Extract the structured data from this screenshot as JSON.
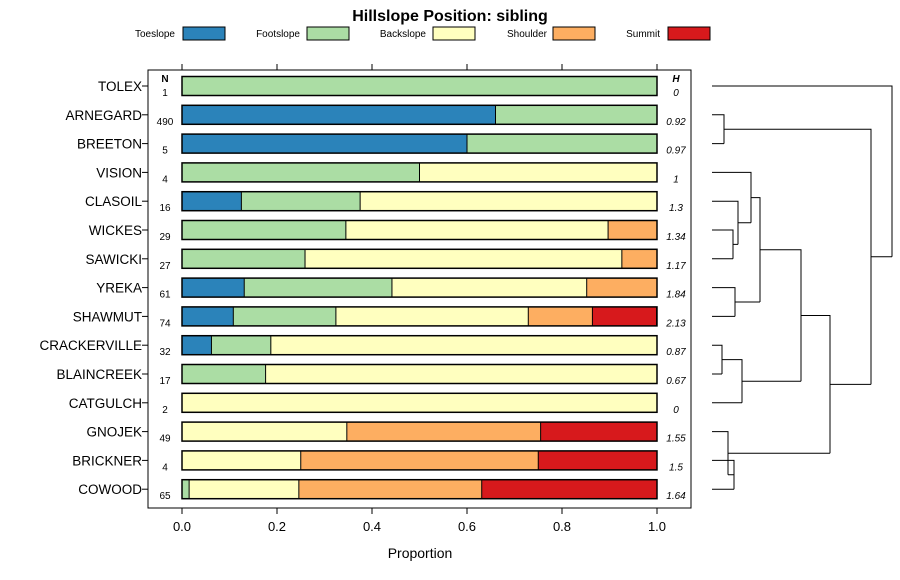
{
  "chart_data": {
    "type": "stacked-bar",
    "title": "Hillslope Position: sibling",
    "xlabel": "Proportion",
    "xlim": [
      0,
      1
    ],
    "x_ticks": [
      "0.0",
      "0.2",
      "0.4",
      "0.6",
      "0.8",
      "1.0"
    ],
    "n_header": "N",
    "h_header": "H",
    "legend": [
      {
        "name": "Toeslope",
        "color": "#2b83ba"
      },
      {
        "name": "Footslope",
        "color": "#abdda4"
      },
      {
        "name": "Backslope",
        "color": "#ffffbf"
      },
      {
        "name": "Shoulder",
        "color": "#fdae61"
      },
      {
        "name": "Summit",
        "color": "#d7191c"
      }
    ],
    "rows": [
      {
        "label": "TOLEX",
        "n": "1",
        "h": "0",
        "values": [
          0,
          1.0,
          0,
          0,
          0
        ]
      },
      {
        "label": "ARNEGARD",
        "n": "490",
        "h": "0.92",
        "values": [
          0.66,
          0.34,
          0,
          0,
          0
        ]
      },
      {
        "label": "BREETON",
        "n": "5",
        "h": "0.97",
        "values": [
          0.6,
          0.4,
          0,
          0,
          0
        ]
      },
      {
        "label": "VISION",
        "n": "4",
        "h": "1",
        "values": [
          0,
          0.5,
          0.5,
          0,
          0
        ]
      },
      {
        "label": "CLASOIL",
        "n": "16",
        "h": "1.3",
        "values": [
          0.125,
          0.25,
          0.625,
          0,
          0
        ]
      },
      {
        "label": "WICKES",
        "n": "29",
        "h": "1.34",
        "values": [
          0,
          0.345,
          0.552,
          0.103,
          0
        ]
      },
      {
        "label": "SAWICKI",
        "n": "27",
        "h": "1.17",
        "values": [
          0,
          0.259,
          0.667,
          0.074,
          0
        ]
      },
      {
        "label": "YREKA",
        "n": "61",
        "h": "1.84",
        "values": [
          0.131,
          0.311,
          0.41,
          0.148,
          0
        ]
      },
      {
        "label": "SHAWMUT",
        "n": "74",
        "h": "2.13",
        "values": [
          0.108,
          0.216,
          0.405,
          0.135,
          0.135
        ]
      },
      {
        "label": "CRACKERVILLE",
        "n": "32",
        "h": "0.87",
        "values": [
          0.062,
          0.125,
          0.813,
          0,
          0
        ]
      },
      {
        "label": "BLAINCREEK",
        "n": "17",
        "h": "0.67",
        "values": [
          0,
          0.176,
          0.824,
          0,
          0
        ]
      },
      {
        "label": "CATGULCH",
        "n": "2",
        "h": "0",
        "values": [
          0,
          0,
          1.0,
          0,
          0
        ]
      },
      {
        "label": "GNOJEK",
        "n": "49",
        "h": "1.55",
        "values": [
          0,
          0,
          0.347,
          0.408,
          0.245
        ]
      },
      {
        "label": "BRICKNER",
        "n": "4",
        "h": "1.5",
        "values": [
          0,
          0,
          0.25,
          0.5,
          0.25
        ]
      },
      {
        "label": "COWOOD",
        "n": "65",
        "h": "1.64",
        "values": [
          0,
          0.015,
          0.231,
          0.385,
          0.369
        ]
      }
    ]
  }
}
